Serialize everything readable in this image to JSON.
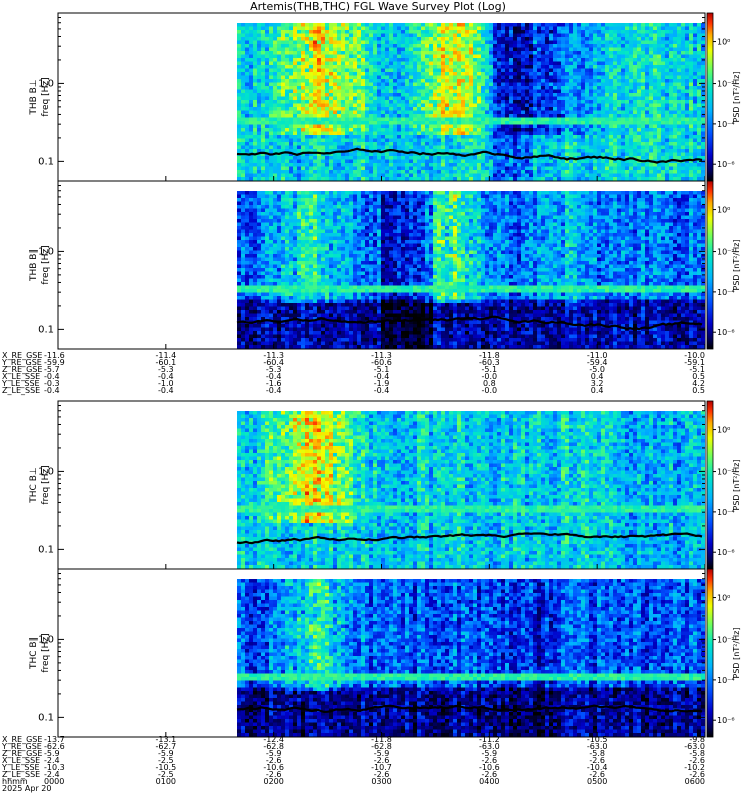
{
  "title": "Artemis(THB,THC) FGL Wave Survey Plot (Log)",
  "chart_data": {
    "type": "heatmap",
    "title": "Artemis(THB,THC) FGL Wave Survey Plot (Log)",
    "y_scale": "log",
    "y_ticks": [
      "0.1",
      "1.0"
    ],
    "colorbar_label": "PSD [nT²/Hz]",
    "colorbar_ticks": [
      "10⁰",
      "10⁻²",
      "10⁻⁴",
      "10⁻⁶"
    ],
    "panels": [
      {
        "probe_label": "THB B⊥",
        "ylabel": "freq [Hz]"
      },
      {
        "probe_label": "THB B∥",
        "ylabel": "freq [Hz]"
      },
      {
        "probe_label": "THC B⊥",
        "ylabel": "freq [Hz]"
      },
      {
        "probe_label": "THC B∥",
        "ylabel": "freq [Hz]"
      }
    ],
    "x_time_labels": [
      "0000",
      "0100",
      "0200",
      "0300",
      "0400",
      "0500",
      "0600"
    ],
    "date_label": "2025 Apr 20",
    "ephemeris_thb": {
      "labels": [
        "X_RE_GSE",
        "Y_RE_GSE",
        "Z_RE_GSE",
        "X_LE_SSE",
        "Y_LE_SSE",
        "Z_LE_SSE"
      ],
      "rows": [
        [
          "-11.6",
          "-11.4",
          "-11.3",
          "-11.3",
          "-11.8",
          "-11.0",
          "-10.0"
        ],
        [
          "-59.9",
          "-60.1",
          "-60.4",
          "-60.6",
          "-60.3",
          "-59.4",
          "-59.1"
        ],
        [
          "-5.7",
          "-5.3",
          "-5.3",
          "-5.1",
          "-5.1",
          "-5.0",
          "-5.1"
        ],
        [
          "-0.4",
          "-0.4",
          "-0.4",
          "-0.4",
          "-0.0",
          "0.4",
          "0.5"
        ],
        [
          "-0.3",
          "-1.0",
          "-1.6",
          "-1.9",
          "0.8",
          "3.2",
          "4.2"
        ],
        [
          "-0.4",
          "-0.4",
          "-0.4",
          "-0.4",
          "-0.0",
          "0.4",
          "0.5"
        ]
      ]
    },
    "ephemeris_thc": {
      "labels": [
        "X_RE_GSE",
        "Y_RE_GSE",
        "Z_RE_GSE",
        "X_LE_SSE",
        "Y_LE_SSE",
        "Z_LE_SSE",
        "hhmm"
      ],
      "rows": [
        [
          "-13.7",
          "-13.1",
          "-12.4",
          "-11.8",
          "-11.2",
          "-10.5",
          "-9.8"
        ],
        [
          "-62.6",
          "-62.7",
          "-62.8",
          "-62.8",
          "-63.0",
          "-63.0",
          "-63.0"
        ],
        [
          "-5.9",
          "-5.9",
          "-5.9",
          "-5.9",
          "-5.9",
          "-5.8",
          "-5.8"
        ],
        [
          "-2.4",
          "-2.5",
          "-2.6",
          "-2.6",
          "-2.6",
          "-2.6",
          "-2.6"
        ],
        [
          "-10.3",
          "-10.5",
          "-10.6",
          "-10.7",
          "-10.6",
          "-10.4",
          "-10.2"
        ],
        [
          "-2.4",
          "-2.5",
          "-2.6",
          "-2.6",
          "-2.6",
          "-2.6",
          "-2.6"
        ],
        [
          "0000",
          "0100",
          "0200",
          "0300",
          "0400",
          "0500",
          "0600"
        ]
      ]
    },
    "colormap": [
      "#000000",
      "#00005a",
      "#0000c8",
      "#0050ff",
      "#00b4ff",
      "#00e6c8",
      "#64ff64",
      "#f0ff00",
      "#ffaa00",
      "#ff3200",
      "#b40000"
    ]
  }
}
